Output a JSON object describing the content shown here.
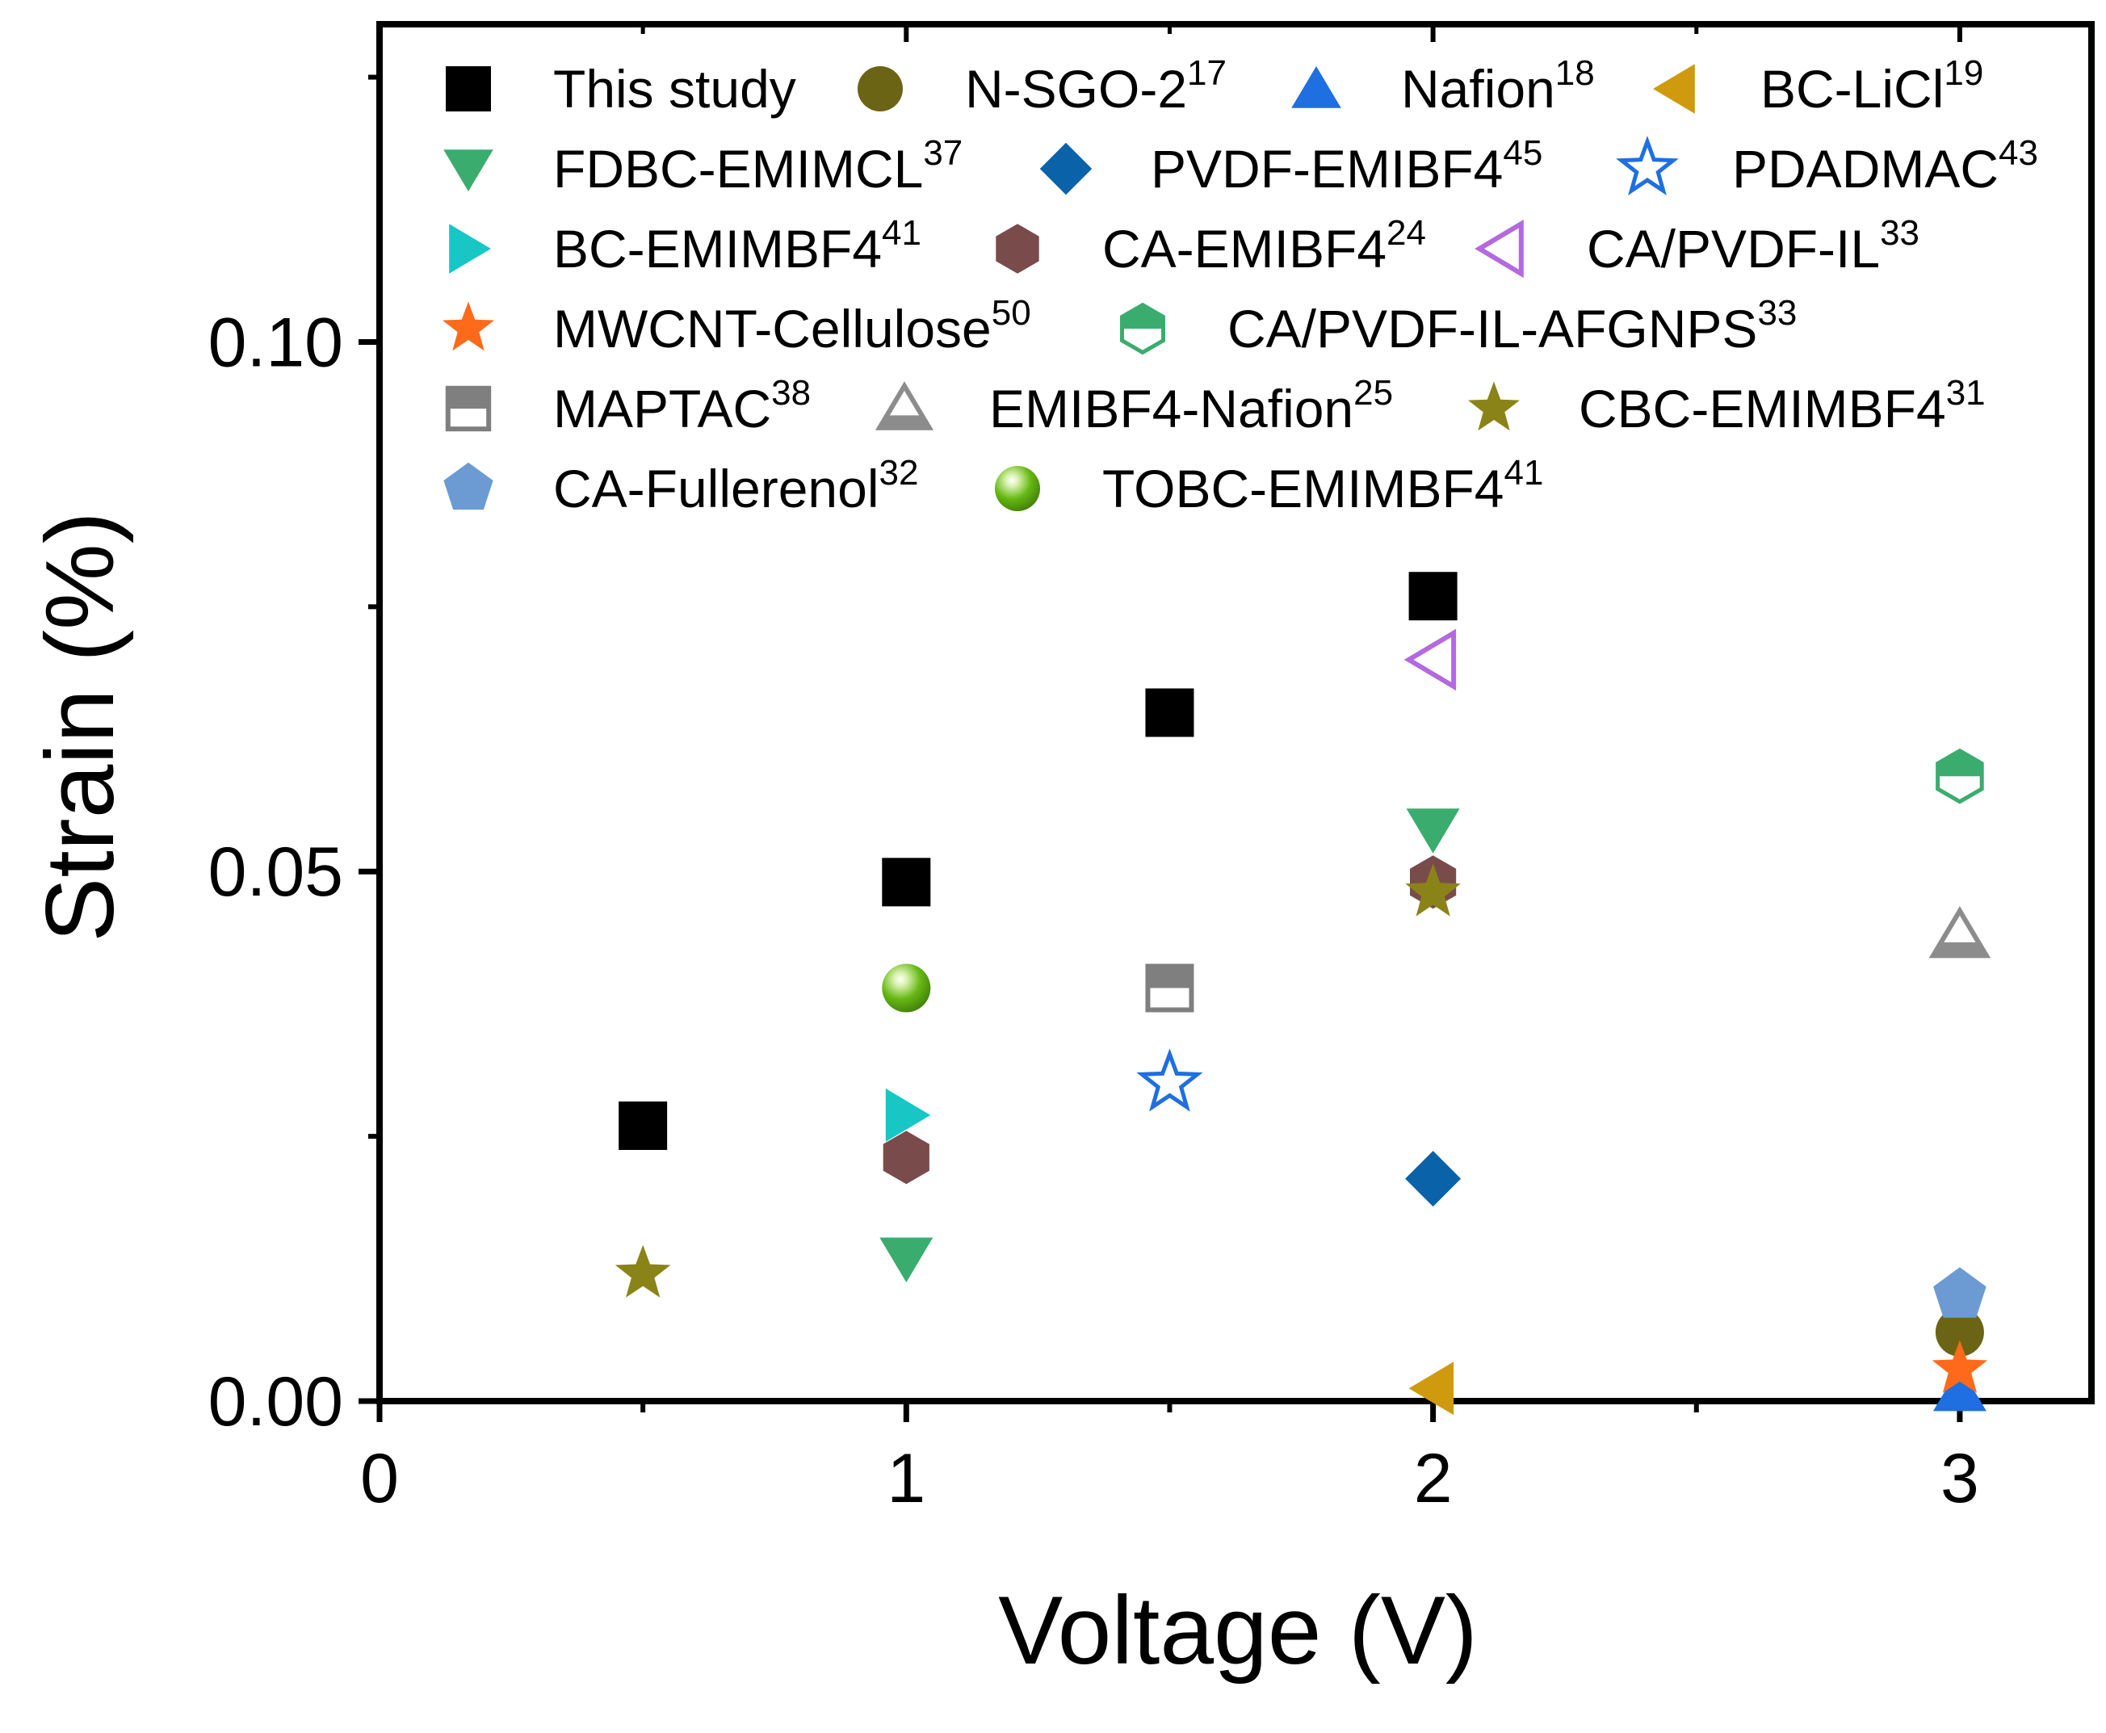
{
  "chart_data": {
    "type": "scatter",
    "title": "",
    "xlabel": "Voltage (V)",
    "ylabel": "Strain (%)",
    "xlim": [
      0,
      3.25
    ],
    "ylim": [
      0,
      0.13
    ],
    "xticks": [
      0,
      1,
      2,
      3
    ],
    "xtick_labels": [
      "0",
      "1",
      "2",
      "3"
    ],
    "yticks": [
      0.0,
      0.05,
      0.1
    ],
    "ytick_labels": [
      "0.00",
      "0.05",
      "0.10"
    ],
    "grid": false,
    "legend_position": "top",
    "series": [
      {
        "name": "This study",
        "sup": "",
        "marker": "square",
        "color": "#000000",
        "points": [
          [
            0.5,
            0.026
          ],
          [
            1.0,
            0.049
          ],
          [
            1.5,
            0.065
          ],
          [
            2.0,
            0.076
          ]
        ]
      },
      {
        "name": "N-SGO-2",
        "sup": "17",
        "marker": "circle",
        "color": "#6b6414",
        "points": [
          [
            3.0,
            0.0065
          ]
        ]
      },
      {
        "name": "Nafion",
        "sup": "18",
        "marker": "triangle-up",
        "color": "#1f6fe0",
        "points": [
          [
            3.0,
            0.001
          ]
        ]
      },
      {
        "name": "BC-LiCl",
        "sup": "19",
        "marker": "triangle-left",
        "color": "#cf9a0e",
        "points": [
          [
            2.0,
            0.0012
          ]
        ]
      },
      {
        "name": "FDBC-EMIMCL",
        "sup": "37",
        "marker": "triangle-down",
        "color": "#3aad6e",
        "points": [
          [
            1.0,
            0.0135
          ],
          [
            2.0,
            0.054
          ]
        ]
      },
      {
        "name": "PVDF-EMIBF4",
        "sup": "45",
        "marker": "diamond",
        "color": "#0a62a8",
        "points": [
          [
            2.0,
            0.021
          ]
        ]
      },
      {
        "name": "PDADMAC",
        "sup": "43",
        "marker": "star-open",
        "color": "#1f6fe0",
        "points": [
          [
            1.5,
            0.03
          ]
        ]
      },
      {
        "name": "BC-EMIMBF4",
        "sup": "41",
        "marker": "triangle-right",
        "color": "#18c6c6",
        "points": [
          [
            1.0,
            0.027
          ]
        ]
      },
      {
        "name": "CA-EMIBF4",
        "sup": "24",
        "marker": "hexagon",
        "color": "#7a4b4b",
        "points": [
          [
            1.0,
            0.023
          ],
          [
            2.0,
            0.049
          ]
        ]
      },
      {
        "name": "CA/PVDF-IL",
        "sup": "33",
        "marker": "triangle-left-open",
        "color": "#b469e0",
        "points": [
          [
            2.0,
            0.07
          ]
        ]
      },
      {
        "name": "MWCNT-Cellulose",
        "sup": "50",
        "marker": "star",
        "color": "#ff6a1a",
        "points": [
          [
            3.0,
            0.003
          ]
        ]
      },
      {
        "name": "CA/PVDF-IL-AFGNPS",
        "sup": "33",
        "marker": "hexagon-half",
        "color": "#3aad6e",
        "points": [
          [
            3.0,
            0.059
          ]
        ]
      },
      {
        "name": "MAPTAC",
        "sup": "38",
        "marker": "square-half",
        "color": "#7f7f7f",
        "points": [
          [
            1.5,
            0.039
          ]
        ]
      },
      {
        "name": "EMIBF4-Nafion",
        "sup": "25",
        "marker": "triangle-up-half",
        "color": "#8c8c8c",
        "points": [
          [
            3.0,
            0.044
          ]
        ]
      },
      {
        "name": "CBC-EMIMBF4",
        "sup": "31",
        "marker": "star",
        "color": "#8a8418",
        "points": [
          [
            0.5,
            0.012
          ],
          [
            2.0,
            0.048
          ]
        ]
      },
      {
        "name": "CA-Fullerenol",
        "sup": "32",
        "marker": "pentagon",
        "color": "#6b9bd2",
        "points": [
          [
            3.0,
            0.01
          ]
        ]
      },
      {
        "name": "TOBC-EMIMBF4",
        "sup": "41",
        "marker": "sphere",
        "color": "#66b814",
        "points": [
          [
            1.0,
            0.039
          ]
        ]
      }
    ]
  }
}
